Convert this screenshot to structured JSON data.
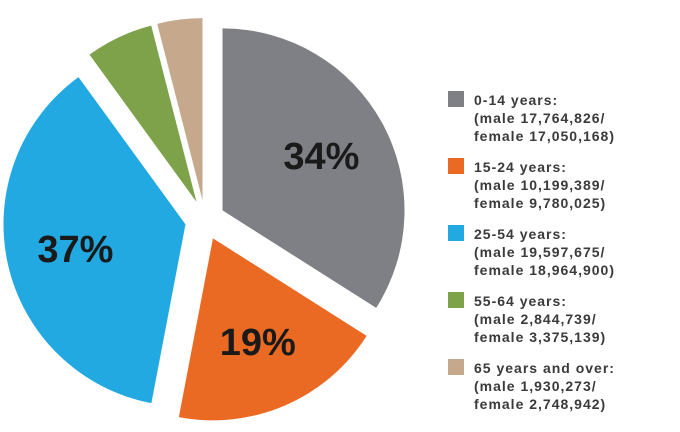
{
  "chart_data": {
    "type": "pie",
    "categories": [
      "0-14 years:",
      "15-24 years:",
      "25-54 years:",
      "55-64 years:",
      "65 years and over:"
    ],
    "legend_details": [
      [
        "(male 17,764,826/",
        "female 17,050,168)"
      ],
      [
        "(male 10,199,389/",
        "female 9,780,025)"
      ],
      [
        "(male 19,597,675/",
        "female 18,964,900)"
      ],
      [
        "(male 2,844,739/",
        "female 3,375,139)"
      ],
      [
        "(male 1,930,273/",
        "female 2,748,942)"
      ]
    ],
    "values": [
      34,
      19,
      37,
      6,
      4
    ],
    "value_labels": [
      "34%",
      "19%",
      "37%",
      null,
      null
    ],
    "colors": [
      "#7e8085",
      "#ea6a24",
      "#22a9e1",
      "#7da24a",
      "#c6a98d"
    ]
  }
}
